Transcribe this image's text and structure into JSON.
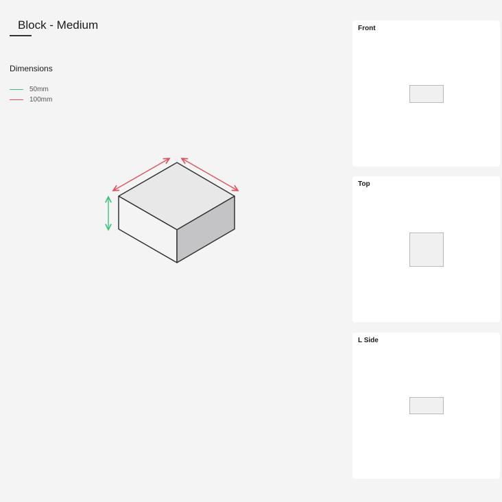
{
  "header": {
    "title": "Block - Medium"
  },
  "dimensions": {
    "label": "Dimensions",
    "legend": [
      {
        "label": "50mm",
        "color": "#3cc47c"
      },
      {
        "label": "100mm",
        "color": "#e0505a"
      }
    ]
  },
  "views": [
    {
      "label": "Front"
    },
    {
      "label": "Top"
    },
    {
      "label": "L Side"
    }
  ]
}
